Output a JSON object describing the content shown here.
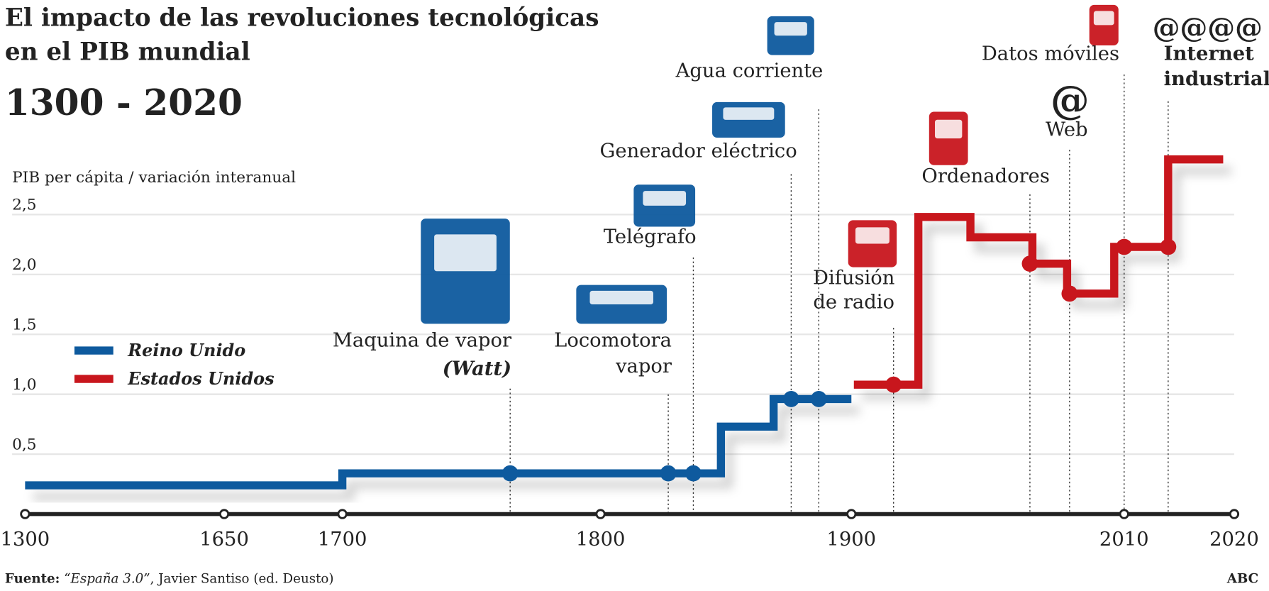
{
  "chart_data": {
    "type": "step-line",
    "title": [
      "El impacto de las revoluciones tecnológicas",
      "en el PIB mundial"
    ],
    "subtitle": "1300 - 2020",
    "y_label": "PIB per cápita / variación interanual",
    "ylim": [
      0,
      3
    ],
    "yticks": [
      {
        "value": 0.5,
        "label": "0,5"
      },
      {
        "value": 1.0,
        "label": "1,0"
      },
      {
        "value": 1.5,
        "label": "1,5"
      },
      {
        "value": 2.0,
        "label": "2,0"
      },
      {
        "value": 2.5,
        "label": "2,5"
      }
    ],
    "xlim": [
      1300,
      2020
    ],
    "xticks": [
      1300,
      1650,
      1700,
      1800,
      1900,
      2010,
      2020
    ],
    "grid": true,
    "series": [
      {
        "name": "Reino Unido",
        "color": "#0e5a9e",
        "x": [
          1300,
          1700,
          1848,
          1869,
          1900
        ],
        "values": [
          0.24,
          0.34,
          0.73,
          0.96,
          0.96
        ]
      },
      {
        "name": "Estados Unidos",
        "color": "#c8161d",
        "x": [
          1901,
          1927,
          1948,
          1973,
          1987,
          2006,
          2014,
          2019
        ],
        "values": [
          1.08,
          2.48,
          2.31,
          2.09,
          1.84,
          2.23,
          2.96,
          2.96
        ]
      }
    ],
    "events": [
      {
        "label": [
          "Maquina de vapor",
          "(Watt)"
        ],
        "year": 1765,
        "value": 0.34,
        "color": "#0e5a9e"
      },
      {
        "label": [
          "Locomotora",
          "vapor"
        ],
        "year": 1827,
        "value": 0.34,
        "color": "#0e5a9e"
      },
      {
        "label": [
          "Telégrafo"
        ],
        "year": 1837,
        "value": 0.34,
        "color": "#0e5a9e"
      },
      {
        "label": [
          "Generador eléctrico"
        ],
        "year": 1876,
        "value": 0.96,
        "color": "#0e5a9e"
      },
      {
        "label": [
          "Agua corriente"
        ],
        "year": 1887,
        "value": 0.96,
        "color": "#0e5a9e"
      },
      {
        "label": [
          "Difusión",
          "de radio"
        ],
        "year": 1917,
        "value": 1.08,
        "color": "#c8161d"
      },
      {
        "label": [
          "Ordenadores"
        ],
        "year": 1972,
        "value": 2.09,
        "color": "#c8161d"
      },
      {
        "label": [
          "Web"
        ],
        "icon": "@",
        "year": 1988,
        "value": 1.84,
        "color": "#c8161d"
      },
      {
        "label": [
          "Datos móviles"
        ],
        "year": 2010,
        "value": 2.23,
        "color": "#c8161d"
      },
      {
        "label": [
          "Internet",
          "industrial"
        ],
        "icon": "@@@@",
        "year": 2014,
        "value": 2.23,
        "color": "#c8161d"
      }
    ],
    "source": [
      "Fuente:",
      "“España 3.0”",
      ", Javier Santiso (ed. Deusto)"
    ],
    "credit": "ABC"
  }
}
